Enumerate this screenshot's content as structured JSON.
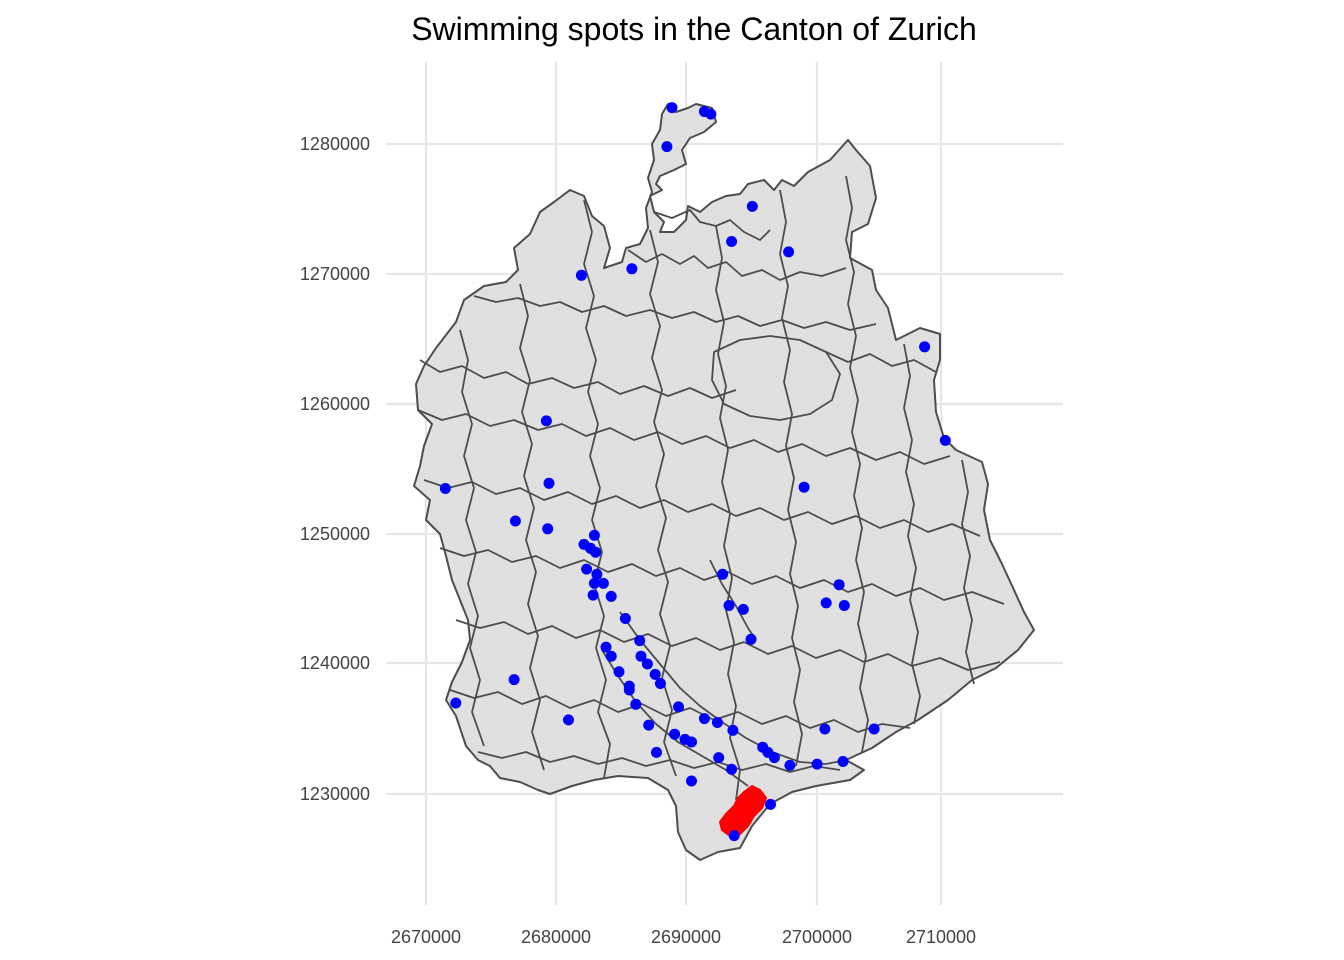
{
  "map": {
    "title": "Swimming spots in the Canton of Zurich",
    "x_ticks": [
      "2670000",
      "2680000",
      "2690000",
      "2700000",
      "2710000"
    ],
    "y_ticks": [
      "1230000",
      "1240000",
      "1250000",
      "1260000",
      "1270000",
      "1280000"
    ],
    "colors": {
      "municipality_fill": "#e0e0e0",
      "municipality_border": "#4d4d4d",
      "highlighted_municipality": "#ff0000",
      "spot": "#0000ff",
      "grid": "#e6e6e6"
    },
    "swimming_spots": [
      [
        2689000,
        1282800
      ],
      [
        2691500,
        1282500
      ],
      [
        2692000,
        1282300
      ],
      [
        2688600,
        1279800
      ],
      [
        2695200,
        1275200
      ],
      [
        2693600,
        1272500
      ],
      [
        2698000,
        1271700
      ],
      [
        2685900,
        1270400
      ],
      [
        2682000,
        1269900
      ],
      [
        2708500,
        1264400
      ],
      [
        2679300,
        1258700
      ],
      [
        2710100,
        1257200
      ],
      [
        2671500,
        1253500
      ],
      [
        2699200,
        1253600
      ],
      [
        2679500,
        1253900
      ],
      [
        2676900,
        1251000
      ],
      [
        2679400,
        1250400
      ],
      [
        2683000,
        1249900
      ],
      [
        2682200,
        1249200
      ],
      [
        2682700,
        1248900
      ],
      [
        2683100,
        1248600
      ],
      [
        2682400,
        1247300
      ],
      [
        2683200,
        1246900
      ],
      [
        2692900,
        1246900
      ],
      [
        2683700,
        1246200
      ],
      [
        2683000,
        1246200
      ],
      [
        2701900,
        1246100
      ],
      [
        2684300,
        1245200
      ],
      [
        2682900,
        1245300
      ],
      [
        2700900,
        1244700
      ],
      [
        2702300,
        1244500
      ],
      [
        2693400,
        1244500
      ],
      [
        2694500,
        1244200
      ],
      [
        2685400,
        1243500
      ],
      [
        2686500,
        1241800
      ],
      [
        2695100,
        1241900
      ],
      [
        2683900,
        1241300
      ],
      [
        2684300,
        1240600
      ],
      [
        2686600,
        1240600
      ],
      [
        2687100,
        1240000
      ],
      [
        2684900,
        1239400
      ],
      [
        2687700,
        1239200
      ],
      [
        2676800,
        1238800
      ],
      [
        2688100,
        1238500
      ],
      [
        2685700,
        1238300
      ],
      [
        2685700,
        1238000
      ],
      [
        2672300,
        1237000
      ],
      [
        2686200,
        1236900
      ],
      [
        2689500,
        1236700
      ],
      [
        2691500,
        1235800
      ],
      [
        2681000,
        1235700
      ],
      [
        2692500,
        1235500
      ],
      [
        2687200,
        1235300
      ],
      [
        2704600,
        1235000
      ],
      [
        2700800,
        1235000
      ],
      [
        2693700,
        1234900
      ],
      [
        2689200,
        1234600
      ],
      [
        2690000,
        1234200
      ],
      [
        2690500,
        1234000
      ],
      [
        2696000,
        1233600
      ],
      [
        2696400,
        1233200
      ],
      [
        2687800,
        1233200
      ],
      [
        2696900,
        1232800
      ],
      [
        2692600,
        1232800
      ],
      [
        2698100,
        1232200
      ],
      [
        2700200,
        1232300
      ],
      [
        2702200,
        1232500
      ],
      [
        2693600,
        1231900
      ],
      [
        2690500,
        1231000
      ],
      [
        2696600,
        1229200
      ],
      [
        2693800,
        1226800
      ]
    ]
  }
}
